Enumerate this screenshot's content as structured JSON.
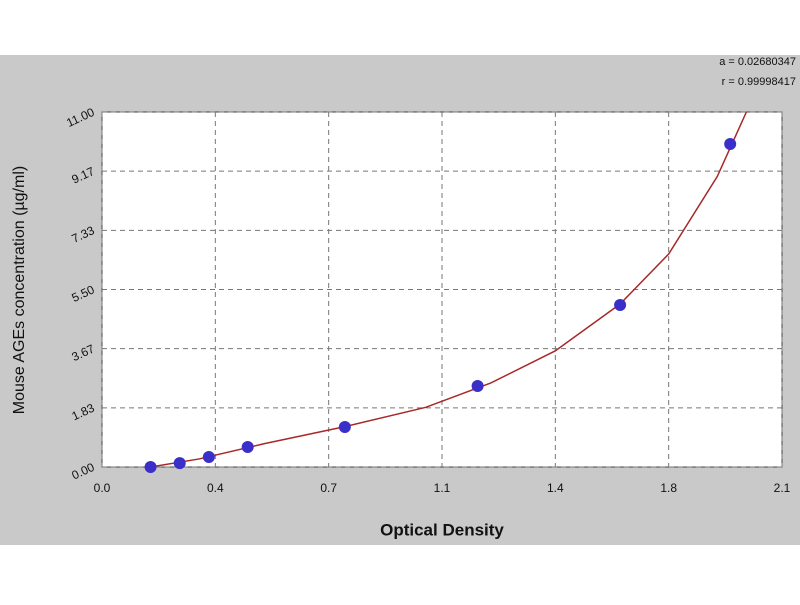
{
  "chart_data": {
    "type": "scatter",
    "annotations": [
      "a = 0.02680347",
      "r = 0.99998417"
    ],
    "xlabel": "Optical Density",
    "ylabel": "Mouse AGEs concentration (µg/ml)",
    "points": {
      "color": "#3a2fc8",
      "x": [
        0.15,
        0.24,
        0.33,
        0.45,
        0.75,
        1.16,
        1.6,
        1.94
      ],
      "y": [
        0.0,
        0.12,
        0.31,
        0.62,
        1.24,
        2.51,
        5.02,
        10.01
      ]
    },
    "fit": {
      "color": "#a82828",
      "x": [
        0.15,
        0.3,
        0.5,
        0.75,
        1.0,
        1.2,
        1.4,
        1.6,
        1.75,
        1.9,
        1.99
      ],
      "y": [
        0.0,
        0.25,
        0.72,
        1.25,
        1.85,
        2.6,
        3.6,
        5.05,
        6.6,
        9.0,
        11.0
      ]
    },
    "xlim": [
      0,
      2.1
    ],
    "xticks": [
      {
        "value": 0,
        "label": "0.0"
      },
      {
        "value": 0.35,
        "label": "0.4"
      },
      {
        "value": 0.7,
        "label": "0.7"
      },
      {
        "value": 1.05,
        "label": "1.1"
      },
      {
        "value": 1.4,
        "label": "1.4"
      },
      {
        "value": 1.75,
        "label": "1.8"
      },
      {
        "value": 2.1,
        "label": "2.1"
      }
    ],
    "ylim": [
      0,
      11
    ],
    "yticks": [
      {
        "value": 0,
        "label": "0.00"
      },
      {
        "value": 1.8333,
        "label": "1.83"
      },
      {
        "value": 3.6667,
        "label": "3.67"
      },
      {
        "value": 5.5,
        "label": "5.50"
      },
      {
        "value": 7.3333,
        "label": "7.33"
      },
      {
        "value": 9.1667,
        "label": "9.17"
      },
      {
        "value": 11,
        "label": "11.00"
      }
    ],
    "grid": true
  }
}
